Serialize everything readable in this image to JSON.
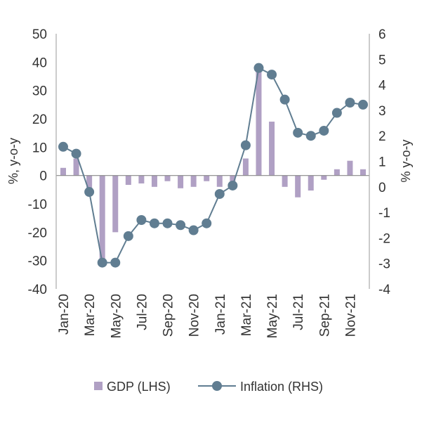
{
  "chart_data": {
    "type": "bar+line",
    "title": "",
    "categories": [
      "Jan-20",
      "Feb-20",
      "Mar-20",
      "Apr-20",
      "May-20",
      "Jun-20",
      "Jul-20",
      "Aug-20",
      "Sep-20",
      "Oct-20",
      "Nov-20",
      "Dec-20",
      "Jan-21",
      "Feb-21",
      "Mar-21",
      "Apr-21",
      "May-21",
      "Jun-21",
      "Jul-21",
      "Aug-21",
      "Sep-21",
      "Oct-21",
      "Nov-21",
      "Dec-21"
    ],
    "x_tick_labels": [
      "Jan-20",
      "Mar-20",
      "May-20",
      "Jul-20",
      "Sep-20",
      "Nov-20",
      "Jan-21",
      "Mar-21",
      "May-21",
      "Jul-21",
      "Sep-21",
      "Nov-21"
    ],
    "ylabel_left": "%, y-o-y",
    "ylabel_right": "% y-o-y",
    "ylim_left": [
      -40,
      50
    ],
    "ylim_right": [
      -4,
      6
    ],
    "yticks_left": [
      -40,
      -30,
      -20,
      -10,
      0,
      10,
      20,
      30,
      40,
      50
    ],
    "yticks_right": [
      -4,
      -3,
      -2,
      -1,
      0,
      1,
      2,
      3,
      4,
      5,
      6
    ],
    "grid": false,
    "legend_position": "bottom",
    "series": [
      {
        "name": "GDP (LHS)",
        "kind": "bar",
        "axis": "left",
        "color": "#b0a0c4",
        "values": [
          2.7,
          6,
          -4.8,
          -29.5,
          -20,
          -3.3,
          -2.8,
          -4,
          -2,
          -4.5,
          -4,
          -2,
          -4,
          -2,
          6,
          37.5,
          19,
          -4,
          -7.7,
          -5.3,
          -1.5,
          2.2,
          5.2,
          2.2
        ]
      },
      {
        "name": "Inflation (RHS)",
        "kind": "line",
        "axis": "right",
        "color": "#607d91",
        "values": [
          1.57,
          1.3,
          -0.2,
          -2.97,
          -2.97,
          -1.93,
          -1.3,
          -1.43,
          -1.43,
          -1.5,
          -1.7,
          -1.43,
          -0.28,
          0.05,
          1.63,
          4.66,
          4.4,
          3.42,
          2.12,
          2.0,
          2.2,
          2.9,
          3.3,
          3.22
        ]
      }
    ]
  }
}
